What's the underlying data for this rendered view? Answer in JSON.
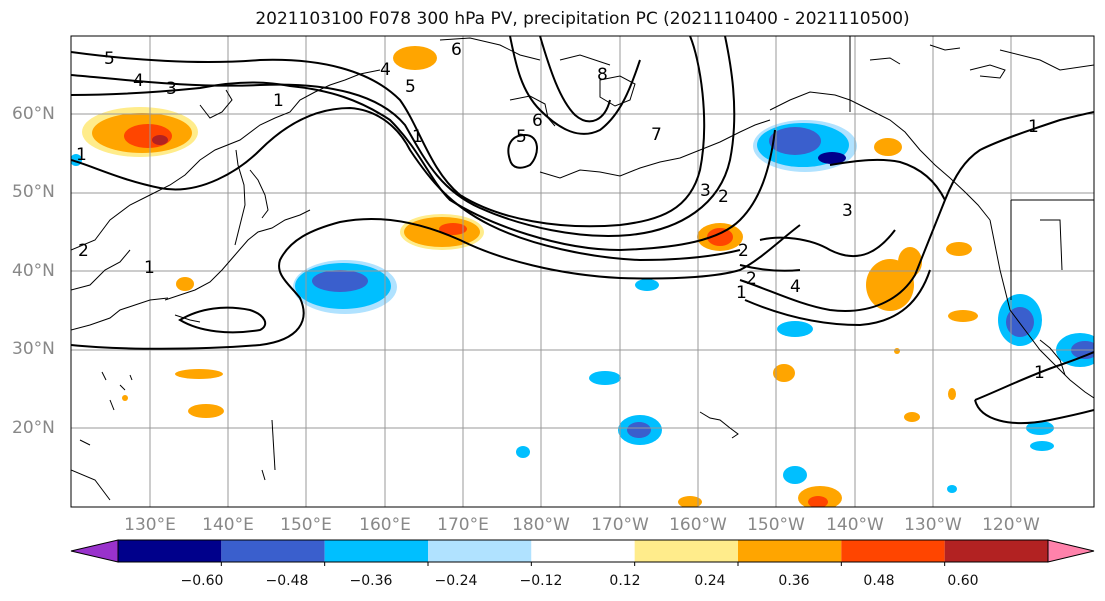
{
  "title": "2021103100 F078 300 hPa PV, precipitation PC (2021110400 - 2021110500)",
  "lat_labels": [
    "60°N",
    "50°N",
    "40°N",
    "30°N",
    "20°N"
  ],
  "lon_labels": [
    "130°E",
    "140°E",
    "150°E",
    "160°E",
    "170°E",
    "180°W",
    "170°W",
    "160°W",
    "150°W",
    "140°W",
    "130°W",
    "120°W"
  ],
  "colorbar": {
    "ticks": [
      "−0.60",
      "−0.48",
      "−0.36",
      "−0.24",
      "−0.12",
      "0.12",
      "0.24",
      "0.36",
      "0.48",
      "0.60"
    ],
    "colors": [
      "#9932cc",
      "#00008b",
      "#3a5fcd",
      "#00bfff",
      "#b0e2ff",
      "#ffffff",
      "#ffec8b",
      "#ffa500",
      "#ff4500",
      "#b22222",
      "#ff82ab"
    ]
  },
  "contour_labels": [
    "5",
    "4",
    "3",
    "1",
    "4",
    "5",
    "6",
    "8",
    "6",
    "7",
    "5",
    "3",
    "2",
    "1",
    "2",
    "3",
    "4",
    "2",
    "1",
    "1",
    "1",
    "2",
    "1",
    "1"
  ]
}
